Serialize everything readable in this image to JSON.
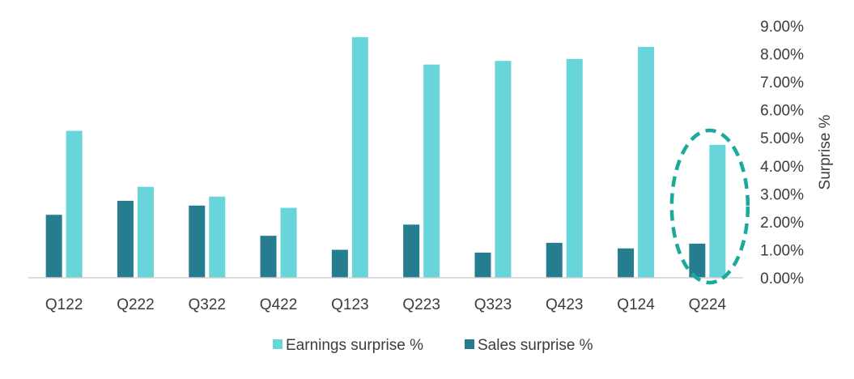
{
  "chart_data": {
    "type": "bar",
    "categories": [
      "Q122",
      "Q222",
      "Q322",
      "Q422",
      "Q123",
      "Q223",
      "Q323",
      "Q423",
      "Q124",
      "Q224"
    ],
    "series": [
      {
        "name": "Sales surprise %",
        "color": "#267d8f",
        "values": [
          2.25,
          2.75,
          2.58,
          1.5,
          1.0,
          1.9,
          0.9,
          1.25,
          1.05,
          1.22
        ]
      },
      {
        "name": "Earnings surprise %",
        "color": "#68d5da",
        "values": [
          5.25,
          3.25,
          2.9,
          2.5,
          8.6,
          7.62,
          7.75,
          7.82,
          8.25,
          4.75
        ]
      }
    ],
    "legend_order": [
      "Earnings surprise %",
      "Sales surprise %"
    ],
    "y_axis": {
      "title": "Surprise %",
      "position": "right",
      "range": [
        0,
        9
      ],
      "ticks": [
        "0.00%",
        "1.00%",
        "2.00%",
        "3.00%",
        "4.00%",
        "5.00%",
        "6.00%",
        "7.00%",
        "8.00%",
        "9.00%"
      ]
    },
    "xlabel": "",
    "ylabel": "Surprise %",
    "ylim": [
      0,
      9
    ],
    "grid": false,
    "legend_placement": "bottom-center",
    "highlight": {
      "category": "Q224",
      "shape": "dashed-ellipse",
      "color": "#1aa99b"
    }
  }
}
